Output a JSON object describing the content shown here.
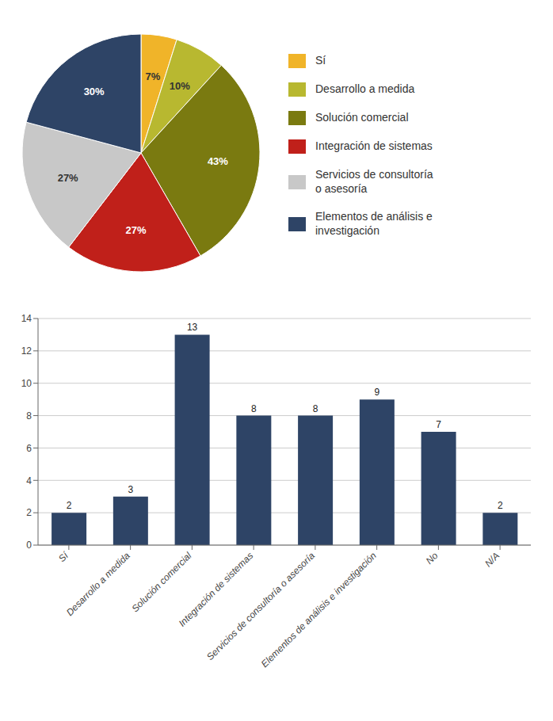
{
  "chart_data": [
    {
      "type": "pie",
      "categories": [
        "Sí",
        "Desarrollo a medida",
        "Solución comercial",
        "Integración de sistemas",
        "Servicios de consultoría\no asesoría",
        "Elementos de análisis e\ninvestigación"
      ],
      "values": [
        7,
        10,
        43,
        27,
        27,
        30
      ],
      "value_labels": [
        "7%",
        "10%",
        "43%",
        "27%",
        "27%",
        "30%"
      ],
      "colors": [
        "#F0B429",
        "#B8B830",
        "#7A7A10",
        "#C0201A",
        "#C8C8C8",
        "#2E4466"
      ],
      "data_labels": true,
      "legend": "right"
    },
    {
      "type": "bar",
      "categories": [
        "Sí",
        "Desarrollo a medida",
        "Solución comercial",
        "Integración de sistemas",
        "Servicios de consultoría o asesoría",
        "Elementos de análisis e investigación",
        "No",
        "N/A"
      ],
      "values": [
        2,
        3,
        13,
        8,
        8,
        9,
        7,
        2
      ],
      "color": "#2E4466",
      "ylim": [
        0,
        14
      ],
      "yticks": [
        0,
        2,
        4,
        6,
        8,
        10,
        12,
        14
      ],
      "grid": true,
      "data_labels": true
    }
  ]
}
